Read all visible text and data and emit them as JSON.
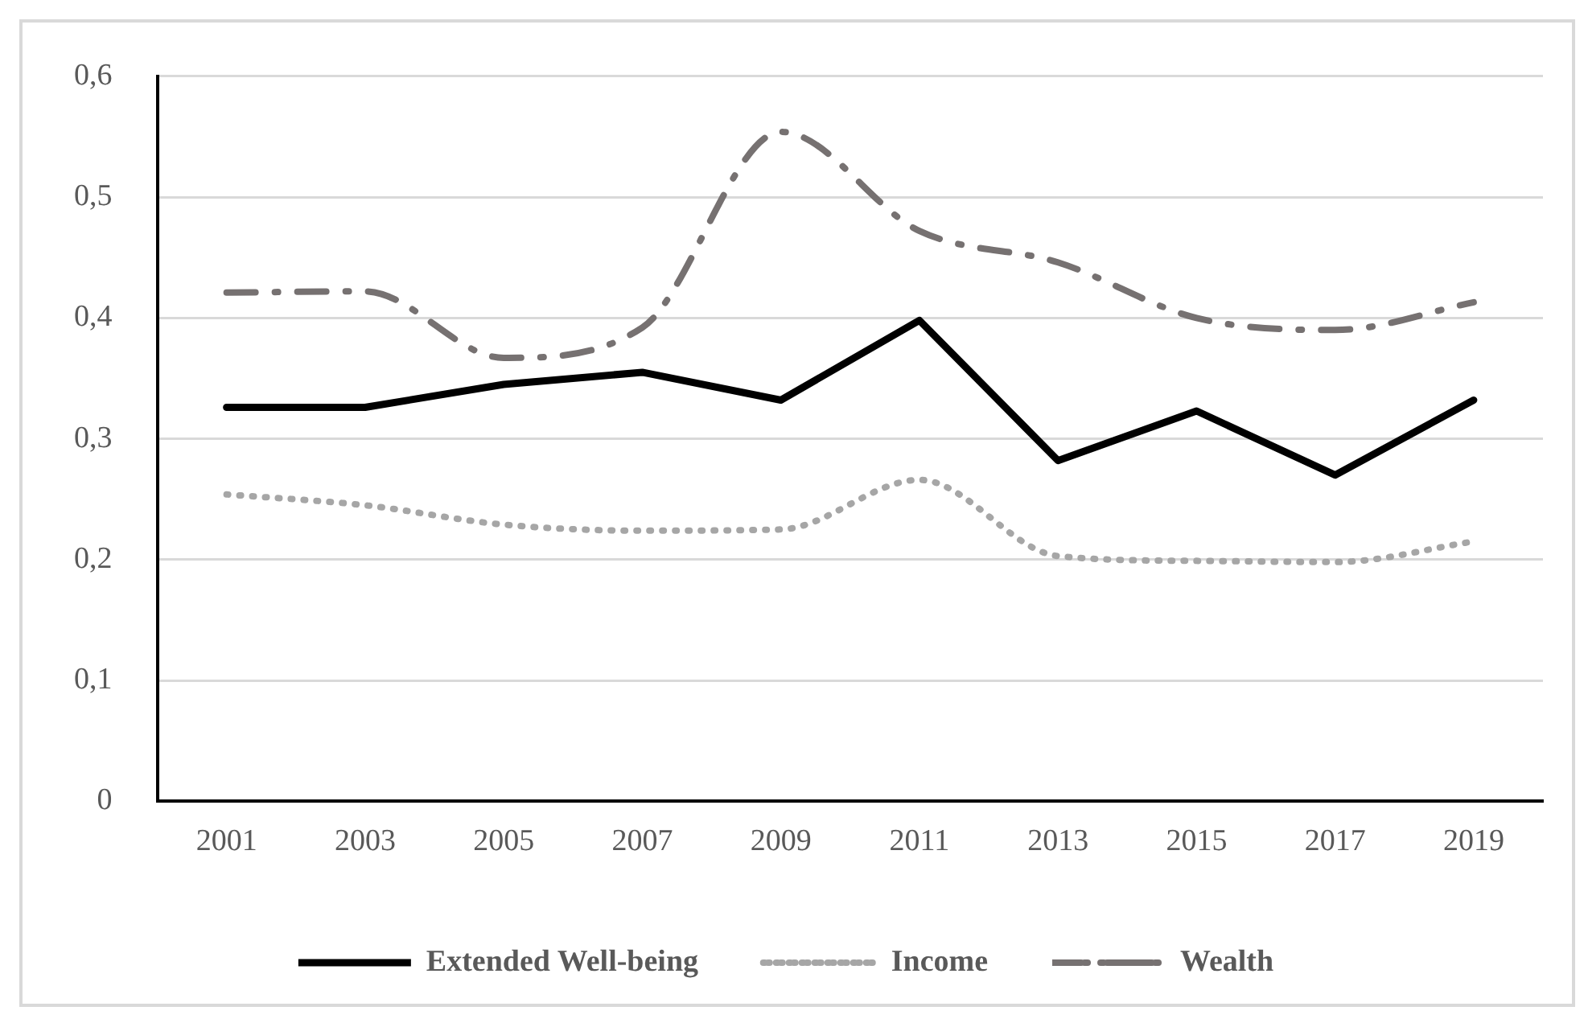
{
  "chart_data": {
    "type": "line",
    "categories": [
      "2001",
      "2003",
      "2005",
      "2007",
      "2009",
      "2011",
      "2013",
      "2015",
      "2017",
      "2019"
    ],
    "series": [
      {
        "name": "Extended Well-being",
        "color": "#000000",
        "line_style": "solid",
        "values": [
          0.326,
          0.326,
          0.345,
          0.355,
          0.332,
          0.398,
          0.282,
          0.323,
          0.27,
          0.332
        ]
      },
      {
        "name": "Income",
        "color": "#a6a6a6",
        "line_style": "dotted",
        "values": [
          0.254,
          0.245,
          0.229,
          0.224,
          0.225,
          0.266,
          0.203,
          0.199,
          0.198,
          0.215
        ]
      },
      {
        "name": "Wealth",
        "color": "#767171",
        "line_style": "dashed",
        "values": [
          0.421,
          0.422,
          0.367,
          0.392,
          0.554,
          0.472,
          0.446,
          0.4,
          0.39,
          0.413
        ]
      }
    ],
    "ylim": [
      0,
      0.6
    ],
    "yticks": [
      {
        "value": 0,
        "label": "0"
      },
      {
        "value": 0.1,
        "label": "0,1"
      },
      {
        "value": 0.2,
        "label": "0,2"
      },
      {
        "value": 0.3,
        "label": "0,3"
      },
      {
        "value": 0.4,
        "label": "0,4"
      },
      {
        "value": 0.5,
        "label": "0,5"
      },
      {
        "value": 0.6,
        "label": "0,6"
      }
    ],
    "grid": "y",
    "legend": "bottom",
    "marker": "none"
  }
}
